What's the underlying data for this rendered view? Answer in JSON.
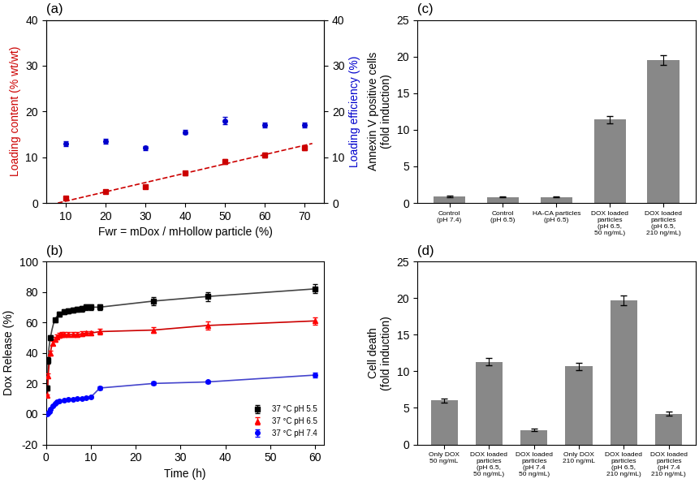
{
  "chart_data": [
    {
      "type": "scatter",
      "title": "(a)",
      "x_label": "Fwr = mDox / mHollow particle (%)",
      "y_label": "Loading content (% wt/wt)",
      "y2_label": "Loading efficiency (%)",
      "xlim": [
        5,
        75
      ],
      "xticks": [
        10,
        20,
        30,
        40,
        50,
        60,
        70
      ],
      "ylim": [
        0,
        40
      ],
      "yticks": [
        0,
        10,
        20,
        30,
        40
      ],
      "y2lim": [
        0,
        40
      ],
      "y2ticks": [
        0,
        10,
        20,
        30,
        40
      ],
      "series": [
        {
          "type": "scatter",
          "marker": "square",
          "color": "#cc0000",
          "x": [
            10,
            20,
            30,
            40,
            50,
            60,
            70
          ],
          "values": [
            1.0,
            2.5,
            3.5,
            6.5,
            9.0,
            10.5,
            12.0
          ],
          "errors": [
            0.3,
            0.3,
            0.3,
            0.4,
            0.5,
            0.5,
            0.5
          ]
        },
        {
          "type": "line",
          "line_style": "dashed",
          "color": "#cc0000",
          "x": [
            8,
            72
          ],
          "values": [
            0.0,
            13.0
          ]
        },
        {
          "type": "scatter",
          "marker": "circle",
          "color": "#0000cc",
          "axis": "y2",
          "x": [
            10,
            20,
            30,
            40,
            50,
            60,
            70
          ],
          "values": [
            13.0,
            13.5,
            12.0,
            15.5,
            18.0,
            17.0,
            17.0
          ],
          "errors": [
            0.5,
            0.5,
            0.5,
            0.5,
            0.8,
            0.5,
            0.5
          ]
        }
      ]
    },
    {
      "type": "line",
      "title": "(b)",
      "x_label": "Time (h)",
      "y_label": "Dox Release (%)",
      "xlim": [
        0,
        62
      ],
      "xticks": [
        0,
        10,
        20,
        30,
        40,
        50,
        60
      ],
      "ylim": [
        -20,
        100
      ],
      "yticks": [
        -20,
        {
          "value": 0,
          "label": "00"
        },
        20,
        40,
        60,
        80,
        100
      ],
      "legend": "lower right",
      "series": [
        {
          "type": "line",
          "color": "#444444",
          "x": [
            0.33,
            0.5,
            0.67,
            0.83,
            1.0,
            1.17,
            1.33,
            1.5,
            1.67,
            1.83,
            2.0,
            2.17,
            2.33,
            2.5,
            2.67,
            2.83,
            3.0,
            3.17,
            3.33,
            3.5,
            3.67,
            3.83,
            4.0,
            4.33,
            4.67,
            5.0,
            5.5,
            6.0,
            7.0,
            8.0,
            9.0,
            10.0,
            12.0,
            24.0,
            36.0,
            60.0
          ],
          "values": [
            17.0,
            35.0,
            43.0,
            47.0,
            50.0,
            52.5,
            55.0,
            57.0,
            59.0,
            60.5,
            61.5,
            62.5,
            63.5,
            64.0,
            64.5,
            65.0,
            65.5,
            66.0,
            66.0,
            66.5,
            66.5,
            67.0,
            67.0,
            67.5,
            67.5,
            67.5,
            68.0,
            68.0,
            68.5,
            69.0,
            70.0,
            70.0,
            70.0,
            74.0,
            77.0,
            82.0
          ]
        },
        {
          "type": "scatter",
          "marker": "square",
          "color": "black",
          "name": "37 °C pH 5.5",
          "x": [
            0.33,
            0.5,
            1.0,
            2.0,
            3.0,
            4.0,
            5.0,
            6.0,
            7.0,
            8.0,
            9.0,
            10.0,
            12.0,
            24.0,
            36.0,
            60.0
          ],
          "values": [
            17.0,
            35.0,
            50.0,
            61.5,
            65.5,
            67.0,
            67.5,
            68.0,
            68.5,
            69.0,
            70.0,
            70.0,
            70.0,
            74.0,
            77.0,
            82.0
          ],
          "errors": [
            1.5,
            2.0,
            1.5,
            1.5,
            1.5,
            1.5,
            1.5,
            1.5,
            1.5,
            2.0,
            2.0,
            2.0,
            2.0,
            2.5,
            3.0,
            3.0
          ]
        },
        {
          "type": "line",
          "color": "#cc0000",
          "x": [
            0.33,
            0.5,
            0.67,
            0.83,
            1.0,
            1.17,
            1.33,
            1.5,
            1.67,
            1.83,
            2.0,
            2.17,
            2.33,
            2.5,
            2.67,
            2.83,
            3.0,
            3.17,
            3.33,
            3.5,
            3.67,
            3.83,
            4.0,
            4.5,
            5.0,
            6.0,
            7.0,
            8.0,
            9.0,
            10.0,
            12.0,
            24.0,
            36.0,
            60.0
          ],
          "values": [
            12.0,
            25.0,
            31.0,
            36.0,
            40.0,
            43.0,
            45.0,
            46.5,
            47.5,
            48.5,
            49.0,
            49.5,
            50.0,
            50.5,
            51.0,
            51.0,
            51.5,
            51.5,
            52.0,
            52.0,
            52.0,
            52.0,
            52.0,
            52.0,
            52.0,
            52.0,
            52.0,
            52.5,
            53.0,
            53.0,
            54.0,
            55.0,
            58.0,
            61.0
          ]
        },
        {
          "type": "scatter",
          "marker": "triangle",
          "color": "red",
          "name": "37 °C pH 6.5",
          "x": [
            0.33,
            0.5,
            1.0,
            1.5,
            2.0,
            2.5,
            3.0,
            3.5,
            4.0,
            5.0,
            6.0,
            7.0,
            8.0,
            9.0,
            10.0,
            12.0,
            24.0,
            36.0,
            60.0
          ],
          "values": [
            12.0,
            25.0,
            40.0,
            46.5,
            49.0,
            50.5,
            51.5,
            52.0,
            52.0,
            52.0,
            52.0,
            52.0,
            52.5,
            53.0,
            53.0,
            54.0,
            55.0,
            58.0,
            61.0
          ],
          "errors": [
            1.0,
            1.5,
            1.5,
            1.5,
            1.5,
            1.5,
            1.5,
            1.5,
            1.5,
            1.5,
            1.5,
            1.5,
            1.5,
            1.5,
            1.5,
            2.0,
            2.0,
            2.5,
            2.5
          ]
        },
        {
          "type": "line",
          "color": "#4444cc",
          "x": [
            0.17,
            0.25,
            0.33,
            0.42,
            0.5,
            0.58,
            0.67,
            0.75,
            0.83,
            0.92,
            1.0,
            1.17,
            1.33,
            1.5,
            1.67,
            1.83,
            2.0,
            2.25,
            2.5,
            2.75,
            3.0,
            3.33,
            3.67,
            4.0,
            4.5,
            5.0,
            6.0,
            7.0,
            8.0,
            9.0,
            10.0,
            12.0,
            24.0,
            36.0,
            60.0
          ],
          "values": [
            0.0,
            0.1,
            0.2,
            0.4,
            0.6,
            0.9,
            1.2,
            1.6,
            2.0,
            2.5,
            3.0,
            3.8,
            4.5,
            5.2,
            5.8,
            6.3,
            6.8,
            7.3,
            7.7,
            8.0,
            8.3,
            8.6,
            8.8,
            9.0,
            9.2,
            9.5,
            9.8,
            10.0,
            10.3,
            10.5,
            11.0,
            17.0,
            20.0,
            21.0,
            25.5
          ]
        },
        {
          "type": "scatter",
          "marker": "circle",
          "color": "blue",
          "name": "37 °C pH 7.4",
          "x": [
            0.25,
            0.5,
            0.75,
            1.0,
            1.5,
            2.0,
            2.5,
            3.0,
            4.0,
            5.0,
            6.0,
            7.0,
            8.0,
            9.0,
            10.0,
            12.0,
            24.0,
            36.0,
            60.0
          ],
          "values": [
            0.1,
            0.6,
            1.6,
            3.0,
            5.2,
            6.8,
            7.7,
            8.3,
            9.0,
            9.5,
            9.8,
            10.0,
            10.3,
            10.5,
            11.0,
            17.0,
            20.0,
            21.0,
            25.5
          ],
          "errors": [
            0.2,
            0.3,
            0.3,
            0.3,
            0.3,
            0.3,
            0.4,
            0.4,
            0.4,
            0.5,
            0.5,
            0.5,
            0.5,
            0.5,
            0.5,
            1.0,
            1.0,
            1.0,
            1.5
          ]
        }
      ]
    },
    {
      "type": "bar",
      "title": "(c)",
      "y_label": "Annexin V positive cells\n(fold induction)",
      "categories": [
        "Control\n(pH 7.4)",
        "Control\n(pH 6.5)",
        "HA-CA particles\n(pH 6.5)",
        "DOX loaded\nparticles\n(pH 6.5,\n50 ng/mL)",
        "DOX loaded\nparticles\n(pH 6.5,\n210 ng/mL)"
      ],
      "values": [
        0.9,
        0.8,
        0.8,
        11.4,
        19.5
      ],
      "errors": [
        0.08,
        0.07,
        0.07,
        0.5,
        0.7
      ],
      "color": "#888888",
      "ylim": [
        0,
        25
      ],
      "yticks": [
        0,
        5,
        10,
        15,
        20,
        25
      ]
    },
    {
      "type": "bar",
      "title": "(d)",
      "y_label": "Cell death\n(fold induction)",
      "categories": [
        "Only DOX\n50 ng/mL",
        "DOX loaded\nparticles\n(pH 6.5,\n50 ng/mL)",
        "DOX loaded\nparticles\n(pH 7.4\n50 ng/mL)",
        "Only DOX\n210 ng/mL",
        "DOX loaded\nparticles\n(pH 6.5,\n210 ng/mL)",
        "DOX loaded\nparticles\n(pH 7.4\n210 ng/mL)"
      ],
      "values": [
        6.0,
        11.3,
        2.0,
        10.7,
        19.7,
        4.2
      ],
      "errors": [
        0.3,
        0.5,
        0.15,
        0.5,
        0.7,
        0.25
      ],
      "color": "#888888",
      "ylim": [
        0,
        25
      ],
      "yticks": [
        0,
        5,
        10,
        15,
        20,
        25
      ]
    }
  ]
}
